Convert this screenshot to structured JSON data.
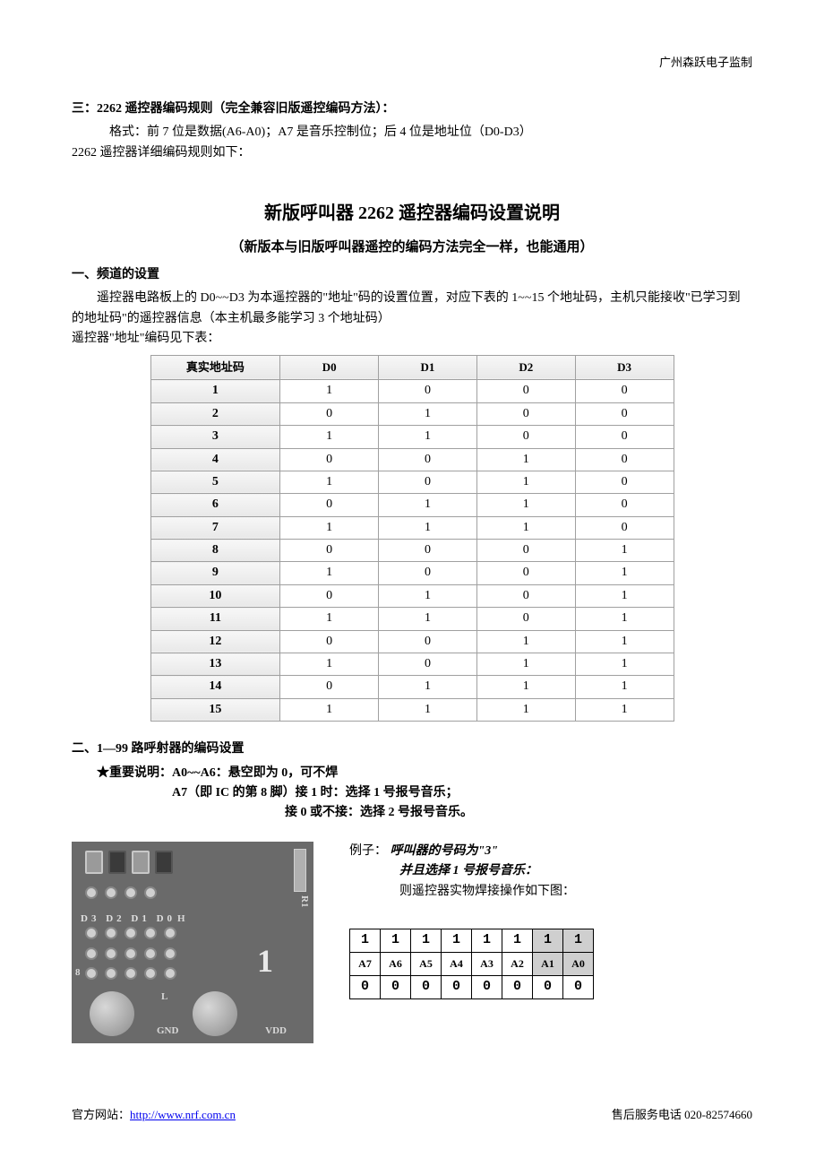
{
  "header": {
    "company": "广州森跃电子监制"
  },
  "section3": {
    "heading": "三：2262 遥控器编码规则（完全兼容旧版遥控编码方法）：",
    "line1": "格式：前 7 位是数据(A6-A0)；A7 是音乐控制位；后 4 位是地址位（D0-D3）",
    "line2": "2262 遥控器详细编码规则如下："
  },
  "mainTitle": "新版呼叫器 2262 遥控器编码设置说明",
  "subTitle": "（新版本与旧版呼叫器遥控的编码方法完全一样，也能通用）",
  "section1": {
    "heading": "一、频道的设置",
    "para1": "遥控器电路板上的 D0~~D3 为本遥控器的\"地址\"码的设置位置，对应下表的 1~~15 个地址码，主机只能接收\"已学习到的地址码\"的遥控器信息（本主机最多能学习 3 个地址码）",
    "para2": "遥控器\"地址\"编码见下表："
  },
  "addressTable": {
    "headers": [
      "真实地址码",
      "D0",
      "D1",
      "D2",
      "D3"
    ],
    "rows": [
      {
        "label": "1",
        "d": [
          "1",
          "0",
          "0",
          "0"
        ]
      },
      {
        "label": "2",
        "d": [
          "0",
          "1",
          "0",
          "0"
        ]
      },
      {
        "label": "3",
        "d": [
          "1",
          "1",
          "0",
          "0"
        ]
      },
      {
        "label": "4",
        "d": [
          "0",
          "0",
          "1",
          "0"
        ]
      },
      {
        "label": "5",
        "d": [
          "1",
          "0",
          "1",
          "0"
        ]
      },
      {
        "label": "6",
        "d": [
          "0",
          "1",
          "1",
          "0"
        ]
      },
      {
        "label": "7",
        "d": [
          "1",
          "1",
          "1",
          "0"
        ]
      },
      {
        "label": "8",
        "d": [
          "0",
          "0",
          "0",
          "1"
        ]
      },
      {
        "label": "9",
        "d": [
          "1",
          "0",
          "0",
          "1"
        ]
      },
      {
        "label": "10",
        "d": [
          "0",
          "1",
          "0",
          "1"
        ]
      },
      {
        "label": "11",
        "d": [
          "1",
          "1",
          "0",
          "1"
        ]
      },
      {
        "label": "12",
        "d": [
          "0",
          "0",
          "1",
          "1"
        ]
      },
      {
        "label": "13",
        "d": [
          "1",
          "0",
          "1",
          "1"
        ]
      },
      {
        "label": "14",
        "d": [
          "0",
          "1",
          "1",
          "1"
        ]
      },
      {
        "label": "15",
        "d": [
          "1",
          "1",
          "1",
          "1"
        ]
      }
    ]
  },
  "section2": {
    "heading": "二、1—99 路呼射器的编码设置",
    "star1": "★重要说明：A0~~A6：悬空即为 0，可不焊",
    "star2": "A7（即 IC 的第 8 脚）接 1 时：选择 1 号报号音乐；",
    "star3": "接 0 或不接：选择 2 号报号音乐。"
  },
  "pcb": {
    "dLabels": "D3 D2 D1 D0",
    "h": "H",
    "l": "L",
    "eight": "8",
    "one": "1",
    "gnd": "GND",
    "vdd": "VDD",
    "r1": "R1"
  },
  "example": {
    "prefix": "例子：",
    "line1": "呼叫器的号码为\"3\"",
    "line2": "并且选择 1 号报号音乐：",
    "line3": "则遥控器实物焊接操作如下图："
  },
  "encodingTable": {
    "row1": [
      "1",
      "1",
      "1",
      "1",
      "1",
      "1",
      "1",
      "1"
    ],
    "row2": [
      "A7",
      "A6",
      "A5",
      "A4",
      "A3",
      "A2",
      "A1",
      "A0"
    ],
    "row3": [
      "0",
      "0",
      "0",
      "0",
      "0",
      "0",
      "0",
      "0"
    ],
    "shaded1": [
      6,
      7
    ],
    "shaded2": [
      6,
      7
    ]
  },
  "footer": {
    "websiteLabel": "官方网站：",
    "websiteUrl": "http://www.nrf.com.cn",
    "phone": "售后服务电话 020-82574660"
  }
}
